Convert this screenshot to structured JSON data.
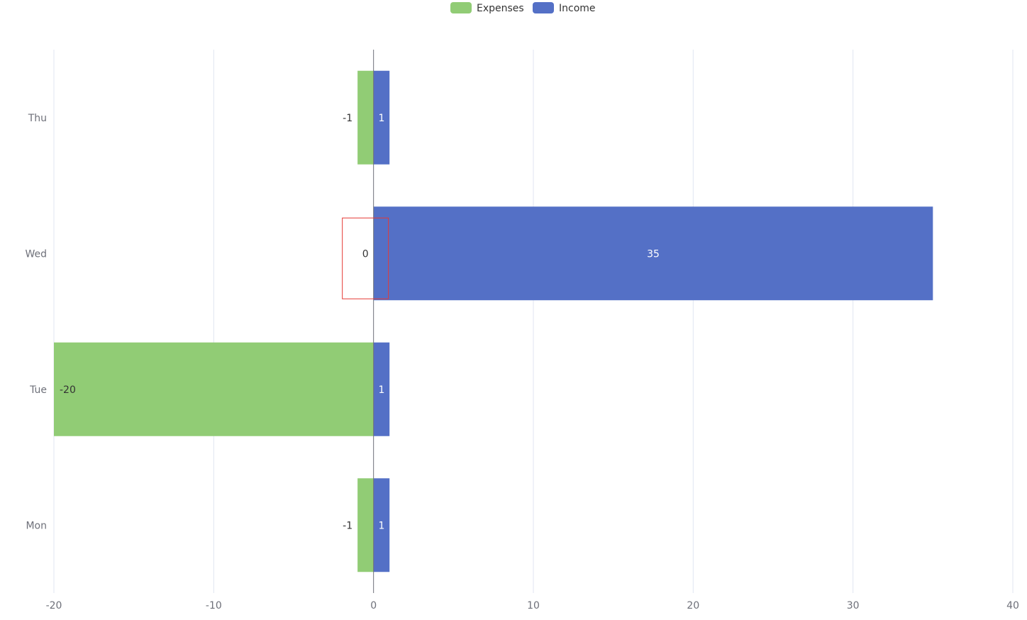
{
  "chart_data": {
    "type": "bar",
    "orientation": "horizontal",
    "stacked": true,
    "categories": [
      "Mon",
      "Tue",
      "Wed",
      "Thu"
    ],
    "series": [
      {
        "name": "Expenses",
        "values": [
          -1,
          -20,
          0,
          -1
        ],
        "color": "#91cc75",
        "label_position": "left"
      },
      {
        "name": "Income",
        "values": [
          1,
          1,
          35,
          1
        ],
        "color": "#5470c6",
        "label_position": "inside"
      }
    ],
    "xlim": [
      -20,
      40
    ],
    "xticks": [
      "-20",
      "-10",
      "0",
      "10",
      "20",
      "30",
      "40"
    ],
    "grid": true,
    "legend_position": "top-center",
    "highlight": {
      "category": "Wed",
      "series": "Expenses",
      "color": "#e53935"
    }
  }
}
